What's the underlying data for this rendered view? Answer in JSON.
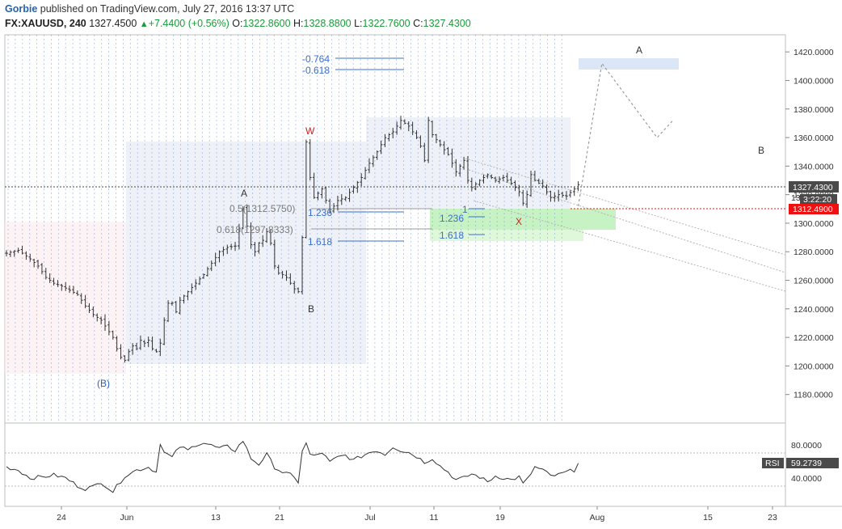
{
  "header": {
    "author": "Gorbie",
    "published_text": " published on TradingView.com, July 27, 2016 13:37 UTC",
    "symbol": "FX:XAUUSD, 240",
    "last": "1327.4500",
    "change": "+7.4400 (+0.56%)",
    "open_label": "O:",
    "open": "1322.8600",
    "high_label": "H:",
    "high": "1328.8800",
    "low_label": "L:",
    "low": "1322.7600",
    "close_label": "C:",
    "close": "1327.4300"
  },
  "chart_data": {
    "type": "candlestick",
    "price_axis": {
      "ticks": [
        "1420.0000",
        "1400.0000",
        "1380.0000",
        "1360.0000",
        "1340.0000",
        "1320.0000",
        "1300.0000",
        "1280.0000",
        "1260.0000",
        "1240.0000",
        "1220.0000",
        "1200.0000",
        "1180.0000"
      ],
      "range": [
        1160,
        1432
      ]
    },
    "time_axis": {
      "labels": [
        "24",
        "Jun",
        "13",
        "21",
        "Jul",
        "11",
        "19",
        "Aug",
        "15",
        "23"
      ]
    },
    "price_labels": {
      "last": "1327.4300",
      "countdown": "3:22:20",
      "red_line": "1312.4900",
      "hidden_partial": "13"
    },
    "wave_labels": [
      {
        "text": "(B)",
        "color": "#2a5fc4"
      },
      {
        "text": "A",
        "color": "#333333"
      },
      {
        "text": "B",
        "color": "#333333"
      },
      {
        "text": "W",
        "color": "#cc2222"
      },
      {
        "text": "X",
        "color": "#cc2222"
      },
      {
        "text": "A",
        "color": "#333333"
      },
      {
        "text": "B",
        "color": "#333333"
      }
    ],
    "fib_labels": {
      "top_a": "-0.764",
      "top_b": "-0.618",
      "retr_a": "0.5(1312.5750)",
      "retr_b": "0.618(1297.8333)",
      "ext_a": "1.236",
      "ext_b": "1.618",
      "ext_c": "1",
      "ext_d": "1.236",
      "ext_e": "1.618"
    },
    "rsi": {
      "label": "RSI",
      "value": "59.2739",
      "ticks": [
        "80.0000",
        "40.0000"
      ],
      "range": [
        15,
        100
      ]
    },
    "price_path": [
      [
        0,
        1279
      ],
      [
        3,
        1281
      ],
      [
        6,
        1275
      ],
      [
        8,
        1270
      ],
      [
        10,
        1262
      ],
      [
        12,
        1258
      ],
      [
        14,
        1256
      ],
      [
        16,
        1253
      ],
      [
        18,
        1250
      ],
      [
        20,
        1242
      ],
      [
        22,
        1236
      ],
      [
        24,
        1232
      ],
      [
        26,
        1224
      ],
      [
        27,
        1220
      ],
      [
        28,
        1212
      ],
      [
        29,
        1206
      ],
      [
        30,
        1204
      ],
      [
        31,
        1210
      ],
      [
        32,
        1214
      ],
      [
        33,
        1212
      ],
      [
        34,
        1218
      ],
      [
        35,
        1216
      ],
      [
        36,
        1218
      ],
      [
        37,
        1212
      ],
      [
        38,
        1210
      ],
      [
        39,
        1216
      ],
      [
        40,
        1232
      ],
      [
        41,
        1244
      ],
      [
        42,
        1244
      ],
      [
        43,
        1238
      ],
      [
        44,
        1246
      ],
      [
        46,
        1252
      ],
      [
        48,
        1258
      ],
      [
        50,
        1264
      ],
      [
        52,
        1272
      ],
      [
        54,
        1280
      ],
      [
        56,
        1283
      ],
      [
        58,
        1284
      ],
      [
        59,
        1296
      ],
      [
        60,
        1310
      ],
      [
        61,
        1298
      ],
      [
        62,
        1285
      ],
      [
        63,
        1280
      ],
      [
        64,
        1286
      ],
      [
        65,
        1288
      ],
      [
        66,
        1294
      ],
      [
        67,
        1286
      ],
      [
        68,
        1270
      ],
      [
        69,
        1265
      ],
      [
        70,
        1264
      ],
      [
        71,
        1262
      ],
      [
        72,
        1258
      ],
      [
        73,
        1254
      ],
      [
        74,
        1252
      ],
      [
        75,
        1290
      ],
      [
        76,
        1357
      ],
      [
        77,
        1332
      ],
      [
        78,
        1318
      ],
      [
        80,
        1324
      ],
      [
        82,
        1308
      ],
      [
        84,
        1316
      ],
      [
        86,
        1318
      ],
      [
        88,
        1325
      ],
      [
        90,
        1332
      ],
      [
        92,
        1342
      ],
      [
        94,
        1350
      ],
      [
        96,
        1360
      ],
      [
        98,
        1364
      ],
      [
        100,
        1372
      ],
      [
        102,
        1368
      ],
      [
        104,
        1360
      ],
      [
        105,
        1354
      ],
      [
        106,
        1344
      ],
      [
        107,
        1372
      ],
      [
        108,
        1362
      ],
      [
        110,
        1355
      ],
      [
        112,
        1348
      ],
      [
        114,
        1336
      ],
      [
        116,
        1344
      ],
      [
        117,
        1330
      ],
      [
        118,
        1325
      ],
      [
        120,
        1330
      ],
      [
        122,
        1334
      ],
      [
        124,
        1330
      ],
      [
        126,
        1332
      ],
      [
        128,
        1328
      ],
      [
        130,
        1322
      ],
      [
        131,
        1314
      ],
      [
        132,
        1320
      ],
      [
        133,
        1334
      ],
      [
        134,
        1330
      ],
      [
        136,
        1326
      ],
      [
        138,
        1318
      ],
      [
        140,
        1320
      ],
      [
        142,
        1319
      ],
      [
        144,
        1324
      ],
      [
        145,
        1327
      ]
    ],
    "rsi_path": [
      [
        0,
        55
      ],
      [
        3,
        52
      ],
      [
        6,
        44
      ],
      [
        9,
        45
      ],
      [
        12,
        47
      ],
      [
        15,
        44
      ],
      [
        18,
        36
      ],
      [
        20,
        33
      ],
      [
        22,
        35
      ],
      [
        24,
        40
      ],
      [
        27,
        30
      ],
      [
        30,
        46
      ],
      [
        33,
        52
      ],
      [
        36,
        55
      ],
      [
        38,
        50
      ],
      [
        39,
        80
      ],
      [
        40,
        70
      ],
      [
        42,
        65
      ],
      [
        44,
        76
      ],
      [
        46,
        72
      ],
      [
        48,
        78
      ],
      [
        50,
        80
      ],
      [
        52,
        77
      ],
      [
        54,
        74
      ],
      [
        56,
        76
      ],
      [
        58,
        72
      ],
      [
        60,
        82
      ],
      [
        62,
        64
      ],
      [
        64,
        58
      ],
      [
        66,
        68
      ],
      [
        68,
        55
      ],
      [
        70,
        50
      ],
      [
        72,
        47
      ],
      [
        74,
        40
      ],
      [
        75,
        72
      ],
      [
        76,
        79
      ],
      [
        77,
        68
      ],
      [
        78,
        66
      ],
      [
        80,
        70
      ],
      [
        82,
        60
      ],
      [
        84,
        65
      ],
      [
        86,
        67
      ],
      [
        88,
        62
      ],
      [
        90,
        66
      ],
      [
        92,
        70
      ],
      [
        94,
        72
      ],
      [
        96,
        68
      ],
      [
        98,
        76
      ],
      [
        100,
        72
      ],
      [
        102,
        70
      ],
      [
        104,
        66
      ],
      [
        106,
        60
      ],
      [
        108,
        64
      ],
      [
        110,
        56
      ],
      [
        112,
        50
      ],
      [
        114,
        42
      ],
      [
        116,
        44
      ],
      [
        118,
        48
      ],
      [
        120,
        45
      ],
      [
        122,
        40
      ],
      [
        124,
        46
      ],
      [
        126,
        44
      ],
      [
        128,
        42
      ],
      [
        130,
        45
      ],
      [
        131,
        38
      ],
      [
        132,
        42
      ],
      [
        134,
        55
      ],
      [
        136,
        52
      ],
      [
        138,
        46
      ],
      [
        140,
        47
      ],
      [
        142,
        50
      ],
      [
        144,
        52
      ],
      [
        145,
        59
      ]
    ],
    "projection": [
      [
        1312,
        145
      ],
      [
        1412,
        151
      ],
      [
        1360,
        165
      ],
      [
        1372,
        169
      ]
    ]
  }
}
